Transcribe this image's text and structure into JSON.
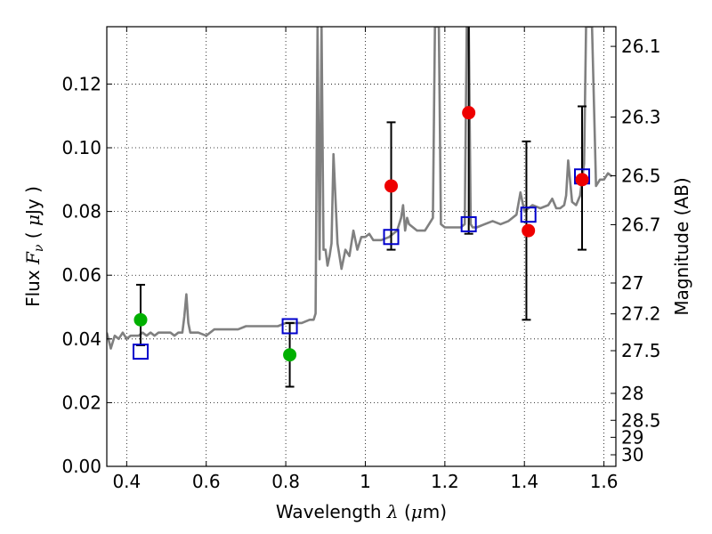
{
  "chart_data": {
    "type": "scatter",
    "xlabel_parts": [
      "Wavelength  ",
      "λ",
      " (",
      "μ",
      "m)"
    ],
    "ylabel_parts": [
      "Flux  ",
      "F",
      "ν",
      "  ( ",
      "μ",
      "Jy )"
    ],
    "y2label": "Magnitude (AB)",
    "xlim": [
      0.35,
      1.63
    ],
    "ylim": [
      0.0,
      0.138
    ],
    "x_ticks": [
      0.4,
      0.6,
      0.8,
      1.0,
      1.2,
      1.4,
      1.6
    ],
    "x_tick_labels": [
      "0.4",
      "0.6",
      "0.8",
      "1",
      "1.2",
      "1.4",
      "1.6"
    ],
    "y_ticks": [
      0.0,
      0.02,
      0.04,
      0.06,
      0.08,
      0.1,
      0.12
    ],
    "y_tick_labels": [
      "0.00",
      "0.02",
      "0.04",
      "0.06",
      "0.08",
      "0.10",
      "0.12"
    ],
    "mag_ticks": [
      26.1,
      26.3,
      26.5,
      26.7,
      27,
      27.2,
      27.5,
      28,
      28.5,
      29,
      30
    ],
    "mag_tick_labels": [
      "26.1",
      "26.3",
      "26.5",
      "26.7",
      "27",
      "27.2",
      "27.5",
      "28",
      "28.5",
      "29",
      "30"
    ],
    "grid": true,
    "colors": {
      "model": "#808080",
      "model_photometry": "#0000cc",
      "optical_points": "#00b000",
      "nir_points": "#ee0000",
      "errorbar": "#000000"
    },
    "series": [
      {
        "type": "line",
        "x": [
          0.35,
          0.36,
          0.37,
          0.38,
          0.39,
          0.4,
          0.41,
          0.42,
          0.43,
          0.44,
          0.45,
          0.46,
          0.47,
          0.48,
          0.49,
          0.5,
          0.51,
          0.52,
          0.53,
          0.54,
          0.545,
          0.55,
          0.555,
          0.56,
          0.58,
          0.6,
          0.62,
          0.64,
          0.66,
          0.68,
          0.7,
          0.72,
          0.74,
          0.76,
          0.78,
          0.8,
          0.82,
          0.84,
          0.86,
          0.87,
          0.875,
          0.88,
          0.885,
          0.89,
          0.895,
          0.9,
          0.905,
          0.91,
          0.915,
          0.92,
          0.93,
          0.94,
          0.95,
          0.96,
          0.97,
          0.98,
          0.99,
          1.0,
          1.01,
          1.02,
          1.04,
          1.06,
          1.08,
          1.09,
          1.095,
          1.1,
          1.105,
          1.11,
          1.12,
          1.13,
          1.14,
          1.15,
          1.16,
          1.17,
          1.175,
          1.18,
          1.185,
          1.19,
          1.2,
          1.22,
          1.24,
          1.25,
          1.255,
          1.26,
          1.265,
          1.27,
          1.28,
          1.3,
          1.32,
          1.34,
          1.36,
          1.38,
          1.39,
          1.395,
          1.4,
          1.42,
          1.44,
          1.46,
          1.47,
          1.48,
          1.49,
          1.5,
          1.505,
          1.51,
          1.52,
          1.53,
          1.54,
          1.55,
          1.555,
          1.56,
          1.57,
          1.58,
          1.59,
          1.6,
          1.61,
          1.62
        ],
        "y": [
          0.042,
          0.037,
          0.041,
          0.04,
          0.042,
          0.04,
          0.041,
          0.041,
          0.041,
          0.042,
          0.041,
          0.042,
          0.041,
          0.042,
          0.042,
          0.042,
          0.042,
          0.041,
          0.042,
          0.042,
          0.047,
          0.054,
          0.045,
          0.042,
          0.042,
          0.041,
          0.043,
          0.043,
          0.043,
          0.043,
          0.044,
          0.044,
          0.044,
          0.044,
          0.044,
          0.045,
          0.045,
          0.045,
          0.046,
          0.046,
          0.048,
          0.138,
          0.065,
          0.138,
          0.068,
          0.068,
          0.063,
          0.066,
          0.07,
          0.098,
          0.07,
          0.062,
          0.068,
          0.066,
          0.074,
          0.068,
          0.072,
          0.072,
          0.073,
          0.071,
          0.071,
          0.072,
          0.074,
          0.078,
          0.082,
          0.074,
          0.078,
          0.076,
          0.075,
          0.074,
          0.074,
          0.074,
          0.076,
          0.078,
          0.138,
          0.138,
          0.138,
          0.076,
          0.075,
          0.075,
          0.075,
          0.076,
          0.138,
          0.138,
          0.076,
          0.075,
          0.075,
          0.076,
          0.077,
          0.076,
          0.077,
          0.079,
          0.086,
          0.083,
          0.08,
          0.082,
          0.081,
          0.082,
          0.084,
          0.081,
          0.081,
          0.082,
          0.085,
          0.096,
          0.083,
          0.082,
          0.085,
          0.095,
          0.138,
          0.138,
          0.138,
          0.088,
          0.09,
          0.09,
          0.092,
          0.091
        ]
      },
      {
        "type": "scatter",
        "marker": "square-open",
        "x": [
          0.435,
          0.81,
          1.065,
          1.26,
          1.41,
          1.545
        ],
        "y": [
          0.036,
          0.044,
          0.072,
          0.076,
          0.079,
          0.091
        ]
      },
      {
        "type": "scatter",
        "marker": "circle",
        "x": [
          0.435,
          0.81
        ],
        "y": [
          0.046,
          0.035
        ],
        "yerr_low": [
          0.008,
          0.01
        ],
        "yerr_high": [
          0.011,
          0.01
        ]
      },
      {
        "type": "scatter",
        "marker": "circle",
        "x": [
          1.065,
          1.26,
          1.41,
          1.545
        ],
        "y": [
          0.088,
          0.111,
          0.074,
          0.09
        ],
        "yerr_low": [
          0.02,
          0.038,
          0.028,
          0.022
        ],
        "yerr_high": [
          0.02,
          0.038,
          0.028,
          0.023
        ],
        "errbar_x": [
          1.065,
          1.26,
          1.405,
          1.545
        ]
      }
    ]
  }
}
